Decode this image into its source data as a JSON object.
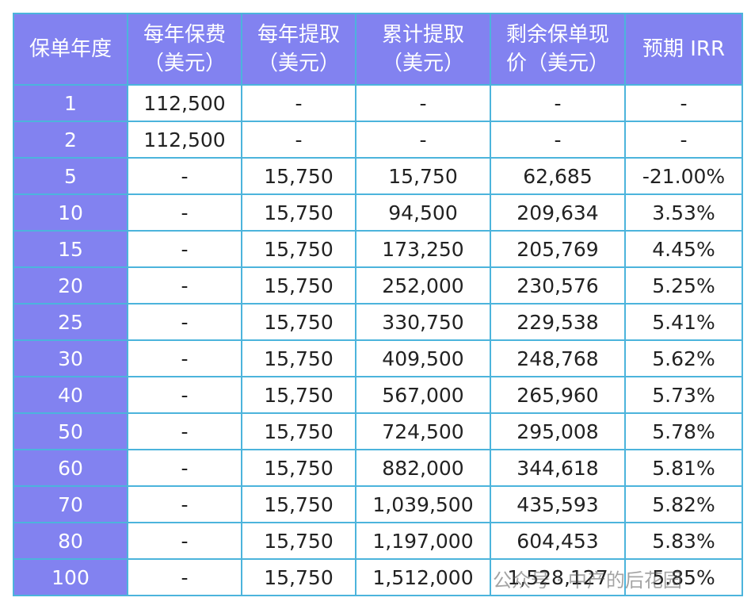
{
  "table": {
    "header": [
      [
        "保单年度"
      ],
      [
        "每年保费",
        "（美元）"
      ],
      [
        "每年提取",
        "（美元）"
      ],
      [
        "累计提取",
        "（美元）"
      ],
      [
        "剩余保单现",
        "价（美元）"
      ],
      [
        "预期 IRR"
      ]
    ],
    "rows": [
      [
        "1",
        "112,500",
        "-",
        "-",
        "-",
        "-"
      ],
      [
        "2",
        "112,500",
        "-",
        "-",
        "-",
        "-"
      ],
      [
        "5",
        "-",
        "15,750",
        "15,750",
        "62,685",
        "-21.00%"
      ],
      [
        "10",
        "-",
        "15,750",
        "94,500",
        "209,634",
        "3.53%"
      ],
      [
        "15",
        "-",
        "15,750",
        "173,250",
        "205,769",
        "4.45%"
      ],
      [
        "20",
        "-",
        "15,750",
        "252,000",
        "230,576",
        "5.25%"
      ],
      [
        "25",
        "-",
        "15,750",
        "330,750",
        "229,538",
        "5.41%"
      ],
      [
        "30",
        "-",
        "15,750",
        "409,500",
        "248,768",
        "5.62%"
      ],
      [
        "40",
        "-",
        "15,750",
        "567,000",
        "265,960",
        "5.73%"
      ],
      [
        "50",
        "-",
        "15,750",
        "724,500",
        "295,008",
        "5.78%"
      ],
      [
        "60",
        "-",
        "15,750",
        "882,000",
        "344,618",
        "5.81%"
      ],
      [
        "70",
        "-",
        "15,750",
        "1,039,500",
        "435,593",
        "5.82%"
      ],
      [
        "80",
        "-",
        "15,750",
        "1,197,000",
        "604,453",
        "5.83%"
      ],
      [
        "100",
        "-",
        "15,750",
        "1,512,000",
        "1,528,127",
        "5.85%"
      ]
    ],
    "watermark": "公众号 · 中产的后花园"
  }
}
